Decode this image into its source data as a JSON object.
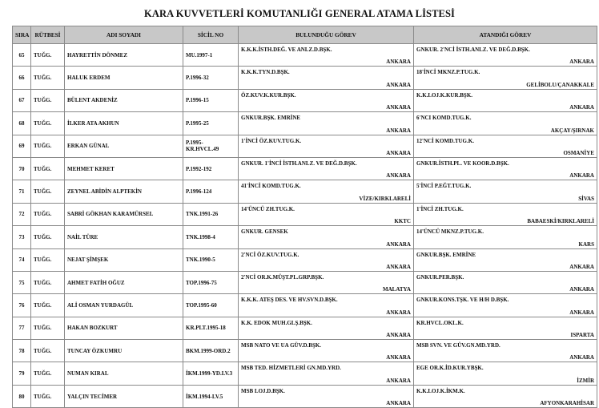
{
  "title": "KARA KUVVETLERİ KOMUTANLIĞI GENERAL ATAMA LİSTESİ",
  "columns": [
    "SIRA",
    "RÜTBESİ",
    "ADI SOYADI",
    "SİCİL NO",
    "BULUNDUĞU GÖREV",
    "ATANDIĞI GÖREV"
  ],
  "rows": [
    {
      "sira": "65",
      "rutbe": "TUĞG.",
      "ad": "HAYRETTİN DÖNMEZ",
      "sicil": "MU.1997-1",
      "bul_unit": "K.K.K.İSTH.DEĞ. VE ANLZ.D.BŞK.",
      "bul_city": "ANKARA",
      "ata_unit": "GNKUR. 2'NCİ İSTH.ANLZ. VE DEĞ.D.BŞK.",
      "ata_city": "ANKARA"
    },
    {
      "sira": "66",
      "rutbe": "TUĞG.",
      "ad": "HALUK ERDEM",
      "sicil": "P.1996-32",
      "bul_unit": "K.K.K.TYN.D.BŞK.",
      "bul_city": "ANKARA",
      "ata_unit": "18'İNCİ MKNZ.P.TUG.K.",
      "ata_city": "GELİBOLU/ÇANAKKALE"
    },
    {
      "sira": "67",
      "rutbe": "TUĞG.",
      "ad": "BÜLENT AKDENİZ",
      "sicil": "P.1996-15",
      "bul_unit": "ÖZ.KUV.K.KUR.BŞK.",
      "bul_city": "ANKARA",
      "ata_unit": "K.K.LOJ.K.KUR.BŞK.",
      "ata_city": "ANKARA"
    },
    {
      "sira": "68",
      "rutbe": "TUĞG.",
      "ad": "İLKER ATA AKHUN",
      "sicil": "P.1995-25",
      "bul_unit": "GNKUR.BŞK. EMRİNE",
      "bul_city": "ANKARA",
      "ata_unit": "6'NCI KOMD.TUG.K.",
      "ata_city": "AKÇAY/ŞIRNAK"
    },
    {
      "sira": "69",
      "rutbe": "TUĞG.",
      "ad": "ERKAN GÜNAL",
      "sicil": "P.1995-KR.HVCL.49",
      "bul_unit": "1'İNCİ ÖZ.KUV.TUG.K.",
      "bul_city": "ANKARA",
      "ata_unit": "12'NCİ KOMD.TUG.K.",
      "ata_city": "OSMANİYE"
    },
    {
      "sira": "70",
      "rutbe": "TUĞG.",
      "ad": "MEHMET KERET",
      "sicil": "P.1992-192",
      "bul_unit": "GNKUR. 1'İNCİ İSTH.ANLZ. VE DEĞ.D.BŞK.",
      "bul_city": "ANKARA",
      "ata_unit": "GNKUR.İSTH.PL. VE KOOR.D.BŞK.",
      "ata_city": "ANKARA"
    },
    {
      "sira": "71",
      "rutbe": "TUĞG.",
      "ad": "ZEYNEL ABİDİN ALPTEKİN",
      "sicil": "P.1996-124",
      "bul_unit": "41'İNCİ KOMD.TUG.K.",
      "bul_city": "VİZE/KIRKLARELİ",
      "ata_unit": "5'İNCİ P.EĞT.TUG.K.",
      "ata_city": "SİVAS"
    },
    {
      "sira": "72",
      "rutbe": "TUĞG.",
      "ad": "SABRİ GÖKHAN KARAMÜRSEL",
      "sicil": "TNK.1991-26",
      "bul_unit": "14'ÜNCÜ ZH.TUG.K.",
      "bul_city": "KKTC",
      "ata_unit": "1'İNCİ ZH.TUG.K.",
      "ata_city": "BABAESKİ/KIRKLARELİ"
    },
    {
      "sira": "73",
      "rutbe": "TUĞG.",
      "ad": "NAİL TÜRE",
      "sicil": "TNK.1998-4",
      "bul_unit": "GNKUR. GENSEK",
      "bul_city": "ANKARA",
      "ata_unit": "14'ÜNCÜ MKNZ.P.TUG.K.",
      "ata_city": "KARS"
    },
    {
      "sira": "74",
      "rutbe": "TUĞG.",
      "ad": "NEJAT ŞİMŞEK",
      "sicil": "TNK.1990-5",
      "bul_unit": "2'NCİ ÖZ.KUV.TUG.K.",
      "bul_city": "ANKARA",
      "ata_unit": "GNKUR.BŞK. EMRİNE",
      "ata_city": "ANKARA"
    },
    {
      "sira": "75",
      "rutbe": "TUĞG.",
      "ad": "AHMET FATİH OĞUZ",
      "sicil": "TOP.1996-75",
      "bul_unit": "2'NCİ OR.K.MÜŞT.PL.GRP.BŞK.",
      "bul_city": "MALATYA",
      "ata_unit": "GNKUR.PER.BŞK.",
      "ata_city": "ANKARA"
    },
    {
      "sira": "76",
      "rutbe": "TUĞG.",
      "ad": "ALİ OSMAN YURDAGÜL",
      "sicil": "TOP.1995-60",
      "bul_unit": "K.K.K. ATEŞ DES. VE HV.SVN.D.BŞK.",
      "bul_city": "ANKARA",
      "ata_unit": "GNKUR.KONS.TŞK. VE H/H D.BŞK.",
      "ata_city": "ANKARA"
    },
    {
      "sira": "77",
      "rutbe": "TUĞG.",
      "ad": "HAKAN BOZKURT",
      "sicil": "KR.PLT.1995-18",
      "bul_unit": "K.K. EDOK MUH.GLŞ.BŞK.",
      "bul_city": "ANKARA",
      "ata_unit": "KR.HVCL.OKL.K.",
      "ata_city": "ISPARTA"
    },
    {
      "sira": "78",
      "rutbe": "TUĞG.",
      "ad": "TUNCAY ÖZKUMRU",
      "sicil": "BKM.1999-ORD.2",
      "bul_unit": "MSB NATO VE UA GÜV.D.BŞK.",
      "bul_city": "ANKARA",
      "ata_unit": "MSB SVN. VE GÜV.GN.MD.YRD.",
      "ata_city": "ANKARA"
    },
    {
      "sira": "79",
      "rutbe": "TUĞG.",
      "ad": "NUMAN KIRAL",
      "sicil": "İKM.1999-YD.LV.3",
      "bul_unit": "MSB TED. HİZMETLERİ GN.MD.YRD.",
      "bul_city": "ANKARA",
      "ata_unit": "EGE OR.K.İD.KUR.YBŞK.",
      "ata_city": "İZMİR"
    },
    {
      "sira": "80",
      "rutbe": "TUĞG.",
      "ad": "YALÇIN TECİMER",
      "sicil": "İKM.1994-LV.5",
      "bul_unit": "MSB LOJ.D.BŞK.",
      "bul_city": "ANKARA",
      "ata_unit": "K.K.LOJ.K.İKM.K.",
      "ata_city": "AFYONKARAHİSAR"
    }
  ]
}
